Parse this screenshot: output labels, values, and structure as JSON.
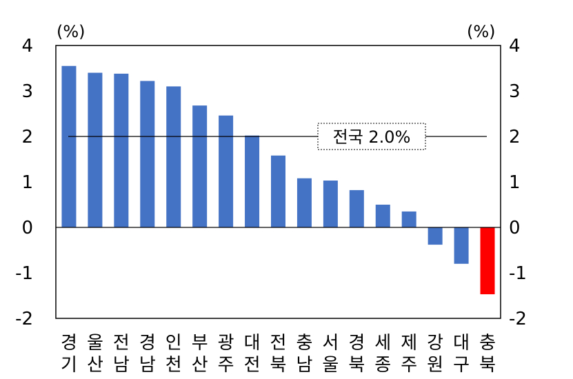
{
  "chart_data": {
    "type": "bar",
    "categories": [
      [
        "경",
        "기"
      ],
      [
        "울",
        "산"
      ],
      [
        "전",
        "남"
      ],
      [
        "경",
        "남"
      ],
      [
        "인",
        "천"
      ],
      [
        "부",
        "산"
      ],
      [
        "광",
        "주"
      ],
      [
        "대",
        "전"
      ],
      [
        "전",
        "북"
      ],
      [
        "충",
        "남"
      ],
      [
        "서",
        "울"
      ],
      [
        "경",
        "북"
      ],
      [
        "세",
        "종"
      ],
      [
        "제",
        "주"
      ],
      [
        "강",
        "원"
      ],
      [
        "대",
        "구"
      ],
      [
        "충",
        "북"
      ]
    ],
    "values": [
      3.55,
      3.4,
      3.38,
      3.22,
      3.1,
      2.68,
      2.46,
      2.02,
      1.58,
      1.08,
      1.03,
      0.82,
      0.5,
      0.35,
      -0.38,
      -0.8,
      -1.47
    ],
    "colors": {
      "positive": "#4472c4",
      "highlight": "#ff0000"
    },
    "highlight_index": 16,
    "ylim": [
      -2,
      4
    ],
    "yticks": [
      "-2",
      "-1",
      "0",
      "1",
      "2",
      "3",
      "4"
    ],
    "left_unit": "(%)",
    "right_unit": "(%)",
    "reference_line": {
      "value": 2.0,
      "label": "전국 2.0%"
    },
    "grid": false
  }
}
